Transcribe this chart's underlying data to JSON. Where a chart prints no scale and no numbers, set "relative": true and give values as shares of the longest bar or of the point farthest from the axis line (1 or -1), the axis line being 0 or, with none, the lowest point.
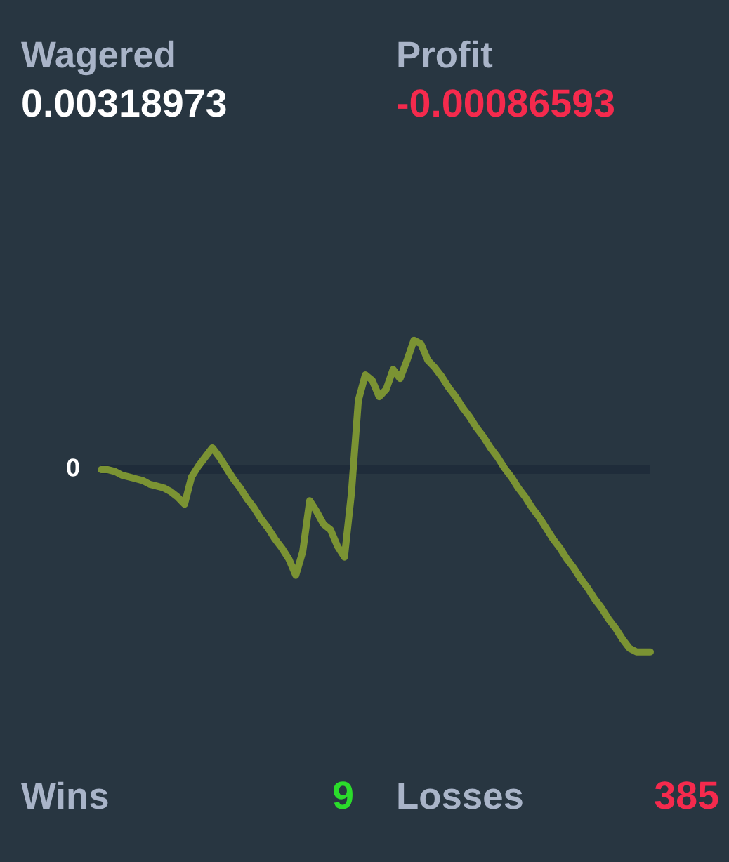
{
  "chart_data": [
    {
      "type": "other",
      "categories": [
        "Wagered",
        "Profit"
      ],
      "values": [
        0.00318973,
        -0.00086593
      ],
      "colors": [
        "#ffffff",
        "#f52a4d"
      ],
      "data_labels": true
    },
    {
      "type": "line",
      "relative": true,
      "categories": [
        null,
        null,
        null,
        null,
        null,
        null,
        null,
        null,
        null,
        null,
        null,
        null,
        null,
        null,
        null,
        null,
        null,
        null,
        null,
        null,
        null,
        null,
        null,
        null,
        null,
        null,
        null,
        null,
        null,
        null,
        null,
        null,
        null,
        null,
        null,
        null,
        null,
        null,
        null,
        null,
        null,
        null,
        null,
        null,
        null,
        null,
        null,
        null,
        null,
        null,
        null,
        null,
        null,
        null,
        null,
        null,
        null,
        null,
        null,
        null,
        null,
        null,
        null,
        null,
        null,
        null,
        null,
        null,
        null,
        null,
        null,
        null,
        null,
        null,
        null,
        null,
        null,
        null,
        null,
        null
      ],
      "series": [
        {
          "color": "#7b9333",
          "values": [
            0,
            0,
            -0.01,
            -0.03,
            -0.04,
            -0.05,
            -0.06,
            -0.08,
            -0.09,
            -0.1,
            -0.12,
            -0.15,
            -0.19,
            -0.04,
            0.02,
            0.07,
            0.12,
            0.07,
            0.01,
            -0.05,
            -0.1,
            -0.16,
            -0.21,
            -0.27,
            -0.32,
            -0.38,
            -0.43,
            -0.49,
            -0.58,
            -0.45,
            -0.17,
            -0.23,
            -0.3,
            -0.33,
            -0.42,
            -0.48,
            -0.13,
            0.38,
            0.52,
            0.49,
            0.4,
            0.44,
            0.55,
            0.5,
            0.6,
            0.71,
            0.69,
            0.6,
            0.56,
            0.51,
            0.45,
            0.4,
            0.34,
            0.29,
            0.23,
            0.18,
            0.12,
            0.07,
            0.01,
            -0.04,
            -0.1,
            -0.15,
            -0.21,
            -0.26,
            -0.32,
            -0.38,
            -0.43,
            -0.49,
            -0.54,
            -0.6,
            -0.65,
            -0.71,
            -0.76,
            -0.82,
            -0.87,
            -0.93,
            -0.98,
            -1,
            -1,
            -1
          ]
        }
      ],
      "annotations": [
        "0"
      ]
    },
    {
      "type": "other",
      "annotations": [
        "Wins",
        "9",
        "Losses",
        "385"
      ],
      "colors": [
        "#a9b4c8",
        "#2bdc2b",
        "#a9b4c8",
        "#f52a4d"
      ]
    }
  ]
}
